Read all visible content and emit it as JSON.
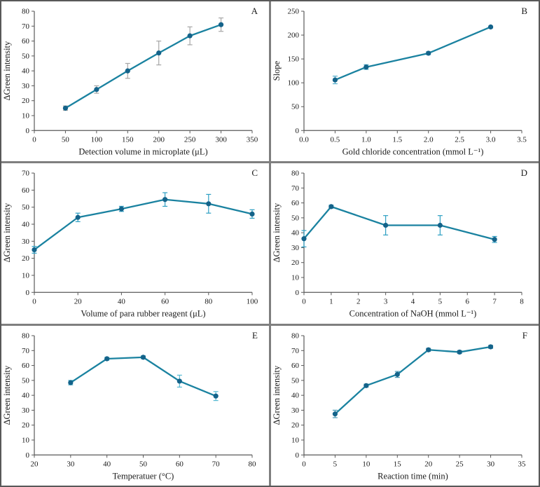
{
  "style": {
    "line_color": "#1a82a0",
    "marker_color": "#14638a",
    "axis_color": "#595959",
    "text_color": "#1a1a1a",
    "background_color": "#ffffff",
    "divider_color": "#7f7f7f"
  },
  "chart_data": [
    {
      "panel_label": "A",
      "type": "line",
      "xlabel": "Detection volume in microplate (μL)",
      "ylabel": "ΔGreen intensity",
      "xlim": [
        0,
        350
      ],
      "ylim": [
        0,
        80
      ],
      "xticks": [
        0,
        50,
        100,
        150,
        200,
        250,
        300,
        350
      ],
      "xtick_labels": [
        "0",
        "50",
        "100",
        "150",
        "200",
        "250",
        "300",
        "350"
      ],
      "yticks": [
        0,
        10,
        20,
        30,
        40,
        50,
        60,
        70,
        80
      ],
      "x": [
        50,
        100,
        150,
        200,
        250,
        300
      ],
      "y": [
        15,
        27.5,
        40,
        52,
        63.5,
        71
      ],
      "yerr": [
        1.5,
        2.5,
        5,
        8,
        6,
        4.5
      ],
      "error_color": "#a6a6a6",
      "grid": false,
      "legend": "none"
    },
    {
      "panel_label": "B",
      "type": "line",
      "xlabel": "Gold chloride concentration (mmol L⁻¹)",
      "ylabel": "Slope",
      "xlim": [
        0,
        3.5
      ],
      "ylim": [
        0,
        250
      ],
      "xticks": [
        0,
        0.5,
        1.0,
        1.5,
        2.0,
        2.5,
        3.0,
        3.5
      ],
      "xtick_labels": [
        "0.0",
        "0.5",
        "1.0",
        "1.5",
        "2.0",
        "2.5",
        "3.0",
        "3.5"
      ],
      "yticks": [
        0,
        50,
        100,
        150,
        200,
        250
      ],
      "x": [
        0.5,
        1.0,
        2.0,
        3.0
      ],
      "y": [
        106,
        133,
        162,
        217
      ],
      "yerr": [
        8,
        5,
        3,
        2
      ],
      "error_color": "#55aecb",
      "grid": false,
      "legend": "none"
    },
    {
      "panel_label": "C",
      "type": "line",
      "xlabel": "Volume of para rubber reagent (μL)",
      "ylabel": "ΔGreen intensity",
      "xlim": [
        0,
        100
      ],
      "ylim": [
        0,
        70
      ],
      "xticks": [
        0,
        20,
        40,
        60,
        80,
        100
      ],
      "xtick_labels": [
        "0",
        "20",
        "40",
        "60",
        "80",
        "100"
      ],
      "yticks": [
        0,
        10,
        20,
        30,
        40,
        50,
        60,
        70
      ],
      "x": [
        0,
        20,
        40,
        60,
        80,
        100
      ],
      "y": [
        25,
        44,
        49,
        54.5,
        52,
        46
      ],
      "yerr": [
        2,
        2.5,
        1.5,
        4,
        5.5,
        2.5
      ],
      "error_color": "#2d9fc3",
      "grid": false,
      "legend": "none"
    },
    {
      "panel_label": "D",
      "type": "line",
      "xlabel": "Concentration of NaOH (mmol L⁻¹)",
      "ylabel": "ΔGreen intensity",
      "xlim": [
        0,
        8
      ],
      "ylim": [
        0,
        80
      ],
      "xticks": [
        0,
        1,
        2,
        3,
        4,
        5,
        6,
        7,
        8
      ],
      "xtick_labels": [
        "0",
        "1",
        "2",
        "3",
        "4",
        "5",
        "6",
        "7",
        "8"
      ],
      "yticks": [
        0,
        10,
        20,
        30,
        40,
        50,
        60,
        70,
        80
      ],
      "x": [
        0,
        1,
        3,
        5,
        7
      ],
      "y": [
        36,
        57.5,
        45,
        45,
        35.5
      ],
      "yerr": [
        5.5,
        1,
        6.5,
        6.5,
        2
      ],
      "error_color": "#2d9fc3",
      "grid": false,
      "legend": "none"
    },
    {
      "panel_label": "E",
      "type": "line",
      "xlabel": "Temperatuer (°C)",
      "ylabel": "ΔGreen intensity",
      "xlim": [
        20,
        80
      ],
      "ylim": [
        0,
        80
      ],
      "xticks": [
        20,
        30,
        40,
        50,
        60,
        70,
        80
      ],
      "xtick_labels": [
        "20",
        "30",
        "40",
        "50",
        "60",
        "70",
        "80"
      ],
      "yticks": [
        0,
        10,
        20,
        30,
        40,
        50,
        60,
        70,
        80
      ],
      "x": [
        30,
        40,
        50,
        60,
        70
      ],
      "y": [
        48.5,
        64.5,
        65.5,
        49.5,
        39.5
      ],
      "yerr": [
        1.5,
        1,
        1,
        4,
        3
      ],
      "error_color": "#55b9d3",
      "grid": false,
      "legend": "none"
    },
    {
      "panel_label": "F",
      "type": "line",
      "xlabel": "Reaction time (min)",
      "ylabel": "ΔGreen intensity",
      "xlim": [
        0,
        35
      ],
      "ylim": [
        0,
        80
      ],
      "xticks": [
        0,
        5,
        10,
        15,
        20,
        25,
        30,
        35
      ],
      "xtick_labels": [
        "0",
        "5",
        "10",
        "15",
        "20",
        "25",
        "30",
        "35"
      ],
      "yticks": [
        0,
        10,
        20,
        30,
        40,
        50,
        60,
        70,
        80
      ],
      "x": [
        5,
        10,
        15,
        20,
        25,
        30
      ],
      "y": [
        27.5,
        46.5,
        54,
        70.5,
        69,
        72.5
      ],
      "yerr": [
        2.5,
        1,
        2,
        1,
        1,
        1
      ],
      "error_color": "#4a9ab5",
      "grid": false,
      "legend": "none"
    }
  ]
}
